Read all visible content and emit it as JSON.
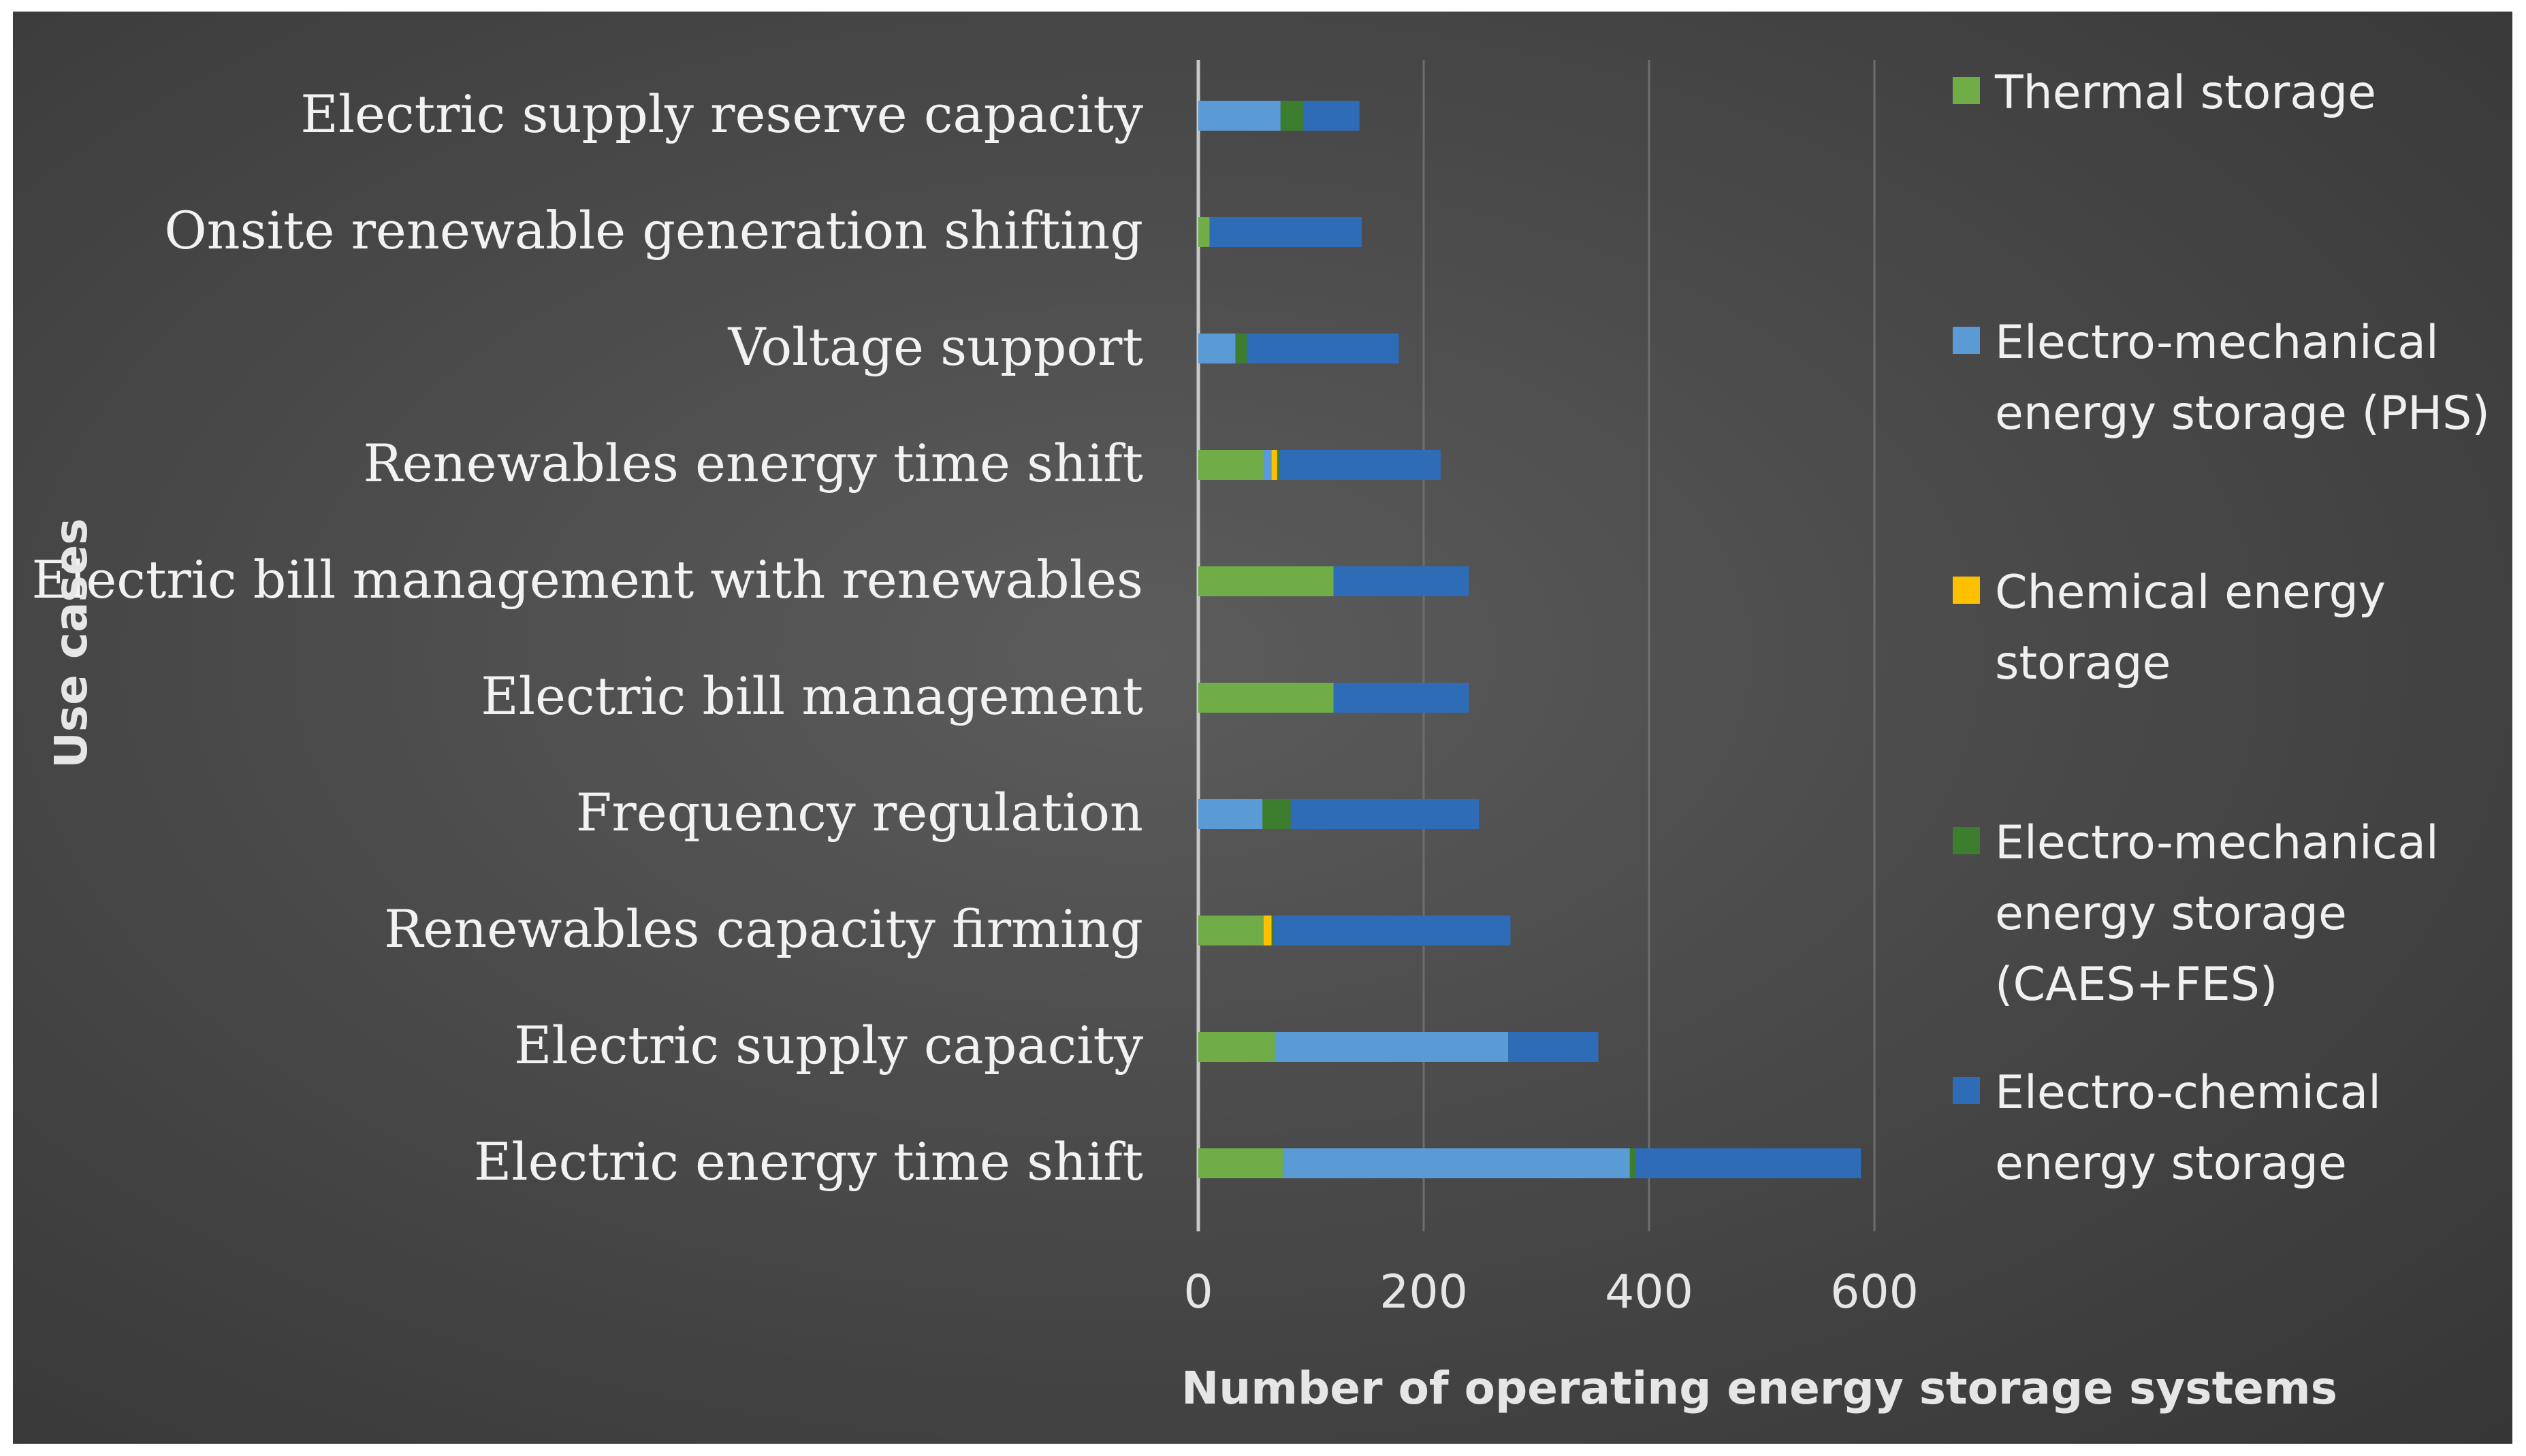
{
  "chart_data": {
    "type": "bar",
    "orientation": "horizontal",
    "stacked": true,
    "title": "",
    "xlabel": "Number of operating energy storage systems",
    "ylabel": "Use cases",
    "xlim": [
      0,
      600
    ],
    "xticks": [
      0,
      200,
      400,
      600
    ],
    "grid": true,
    "legend_position": "right",
    "categories": [
      "Electric supply reserve capacity",
      "Onsite renewable generation shifting",
      "Voltage support",
      "Renewables energy time shift",
      "Electric bill management with renewables",
      "Electric bill management",
      "Frequency regulation",
      "Renewables capacity firming",
      "Electric supply capacity",
      "Electric energy time shift"
    ],
    "series": [
      {
        "name": "Thermal storage",
        "color": "#70ad47",
        "values": [
          0,
          10,
          0,
          58,
          120,
          120,
          0,
          58,
          68,
          75
        ]
      },
      {
        "name": "Electro-mechanical energy storage (PHS)",
        "color": "#5b9bd5",
        "values": [
          73,
          0,
          33,
          7,
          0,
          0,
          57,
          0,
          207,
          308
        ]
      },
      {
        "name": "Chemical energy storage",
        "color": "#ffc000",
        "values": [
          0,
          0,
          0,
          5,
          0,
          0,
          0,
          7,
          0,
          0
        ]
      },
      {
        "name": "Electro-mechanical energy storage (CAES+FES)",
        "color": "#3d7d2e",
        "values": [
          20,
          0,
          10,
          2,
          0,
          0,
          25,
          2,
          0,
          5
        ]
      },
      {
        "name": "Electro-chemical energy storage",
        "color": "#2e6cb8",
        "values": [
          50,
          135,
          135,
          143,
          120,
          120,
          167,
          210,
          80,
          200
        ]
      }
    ],
    "legend_labels": [
      [
        "Thermal storage"
      ],
      [
        "Electro-mechanical",
        "energy storage (PHS)"
      ],
      [
        "Chemical energy",
        "storage"
      ],
      [
        "Electro-mechanical",
        "energy storage",
        "(CAES+FES)"
      ],
      [
        "Electro-chemical",
        "energy storage"
      ]
    ]
  }
}
